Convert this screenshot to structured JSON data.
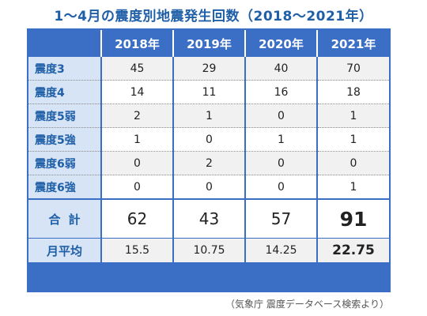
{
  "title": "1〜4月の震度別地震発生回数（2018〜2021年）",
  "source": "（気象庁 震度データベース検索より）",
  "colors": {
    "accent": "#3b6fc6",
    "title": "#1f5fa8",
    "label_bg": "#d7e4f5",
    "stripe": "#f1f1f1"
  },
  "chart_data": {
    "type": "table",
    "title": "1〜4月の震度別地震発生回数（2018〜2021年）",
    "columns": [
      "2018年",
      "2019年",
      "2020年",
      "2021年"
    ],
    "rows": [
      {
        "label": "震度3",
        "values": [
          "45",
          "29",
          "40",
          "70"
        ]
      },
      {
        "label": "震度4",
        "values": [
          "14",
          "11",
          "16",
          "18"
        ]
      },
      {
        "label": "震度5弱",
        "values": [
          "2",
          "1",
          "0",
          "1"
        ]
      },
      {
        "label": "震度5強",
        "values": [
          "1",
          "0",
          "1",
          "1"
        ]
      },
      {
        "label": "震度6弱",
        "values": [
          "0",
          "2",
          "0",
          "0"
        ]
      },
      {
        "label": "震度6強",
        "values": [
          "0",
          "0",
          "0",
          "1"
        ]
      }
    ],
    "total": {
      "label": "合計",
      "values": [
        "62",
        "43",
        "57",
        "91"
      ]
    },
    "average": {
      "label": "月平均",
      "values": [
        "15.5",
        "10.75",
        "14.25",
        "22.75"
      ]
    }
  }
}
